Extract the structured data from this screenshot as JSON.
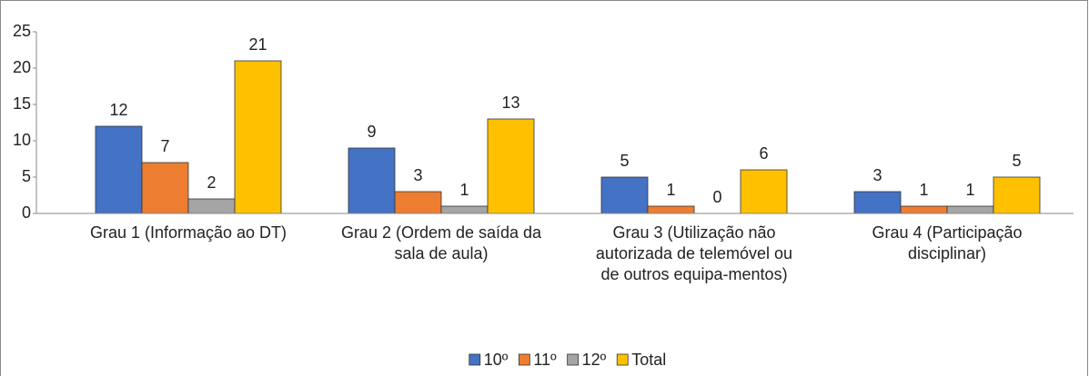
{
  "chart_data": {
    "type": "bar",
    "categories": [
      "Grau 1 (Informação ao DT)",
      "Grau 2 (Ordem de saída da sala de aula)",
      "Grau 3 (Utilização não autorizada de telemóvel ou de outros equipa-mentos)",
      "Grau 4 (Participação disciplinar)"
    ],
    "series": [
      {
        "name": "10º",
        "color": "#4472c4",
        "values": [
          12,
          9,
          5,
          3
        ]
      },
      {
        "name": "11º",
        "color": "#ed7d31",
        "values": [
          7,
          3,
          1,
          1
        ]
      },
      {
        "name": "12º",
        "color": "#a5a5a5",
        "values": [
          2,
          1,
          0,
          1
        ]
      },
      {
        "name": "Total",
        "color": "#ffc000",
        "values": [
          21,
          13,
          6,
          5
        ]
      }
    ],
    "ylim": [
      0,
      25
    ],
    "yticks": [
      0,
      5,
      10,
      15,
      20,
      25
    ],
    "legend": "bottom"
  }
}
